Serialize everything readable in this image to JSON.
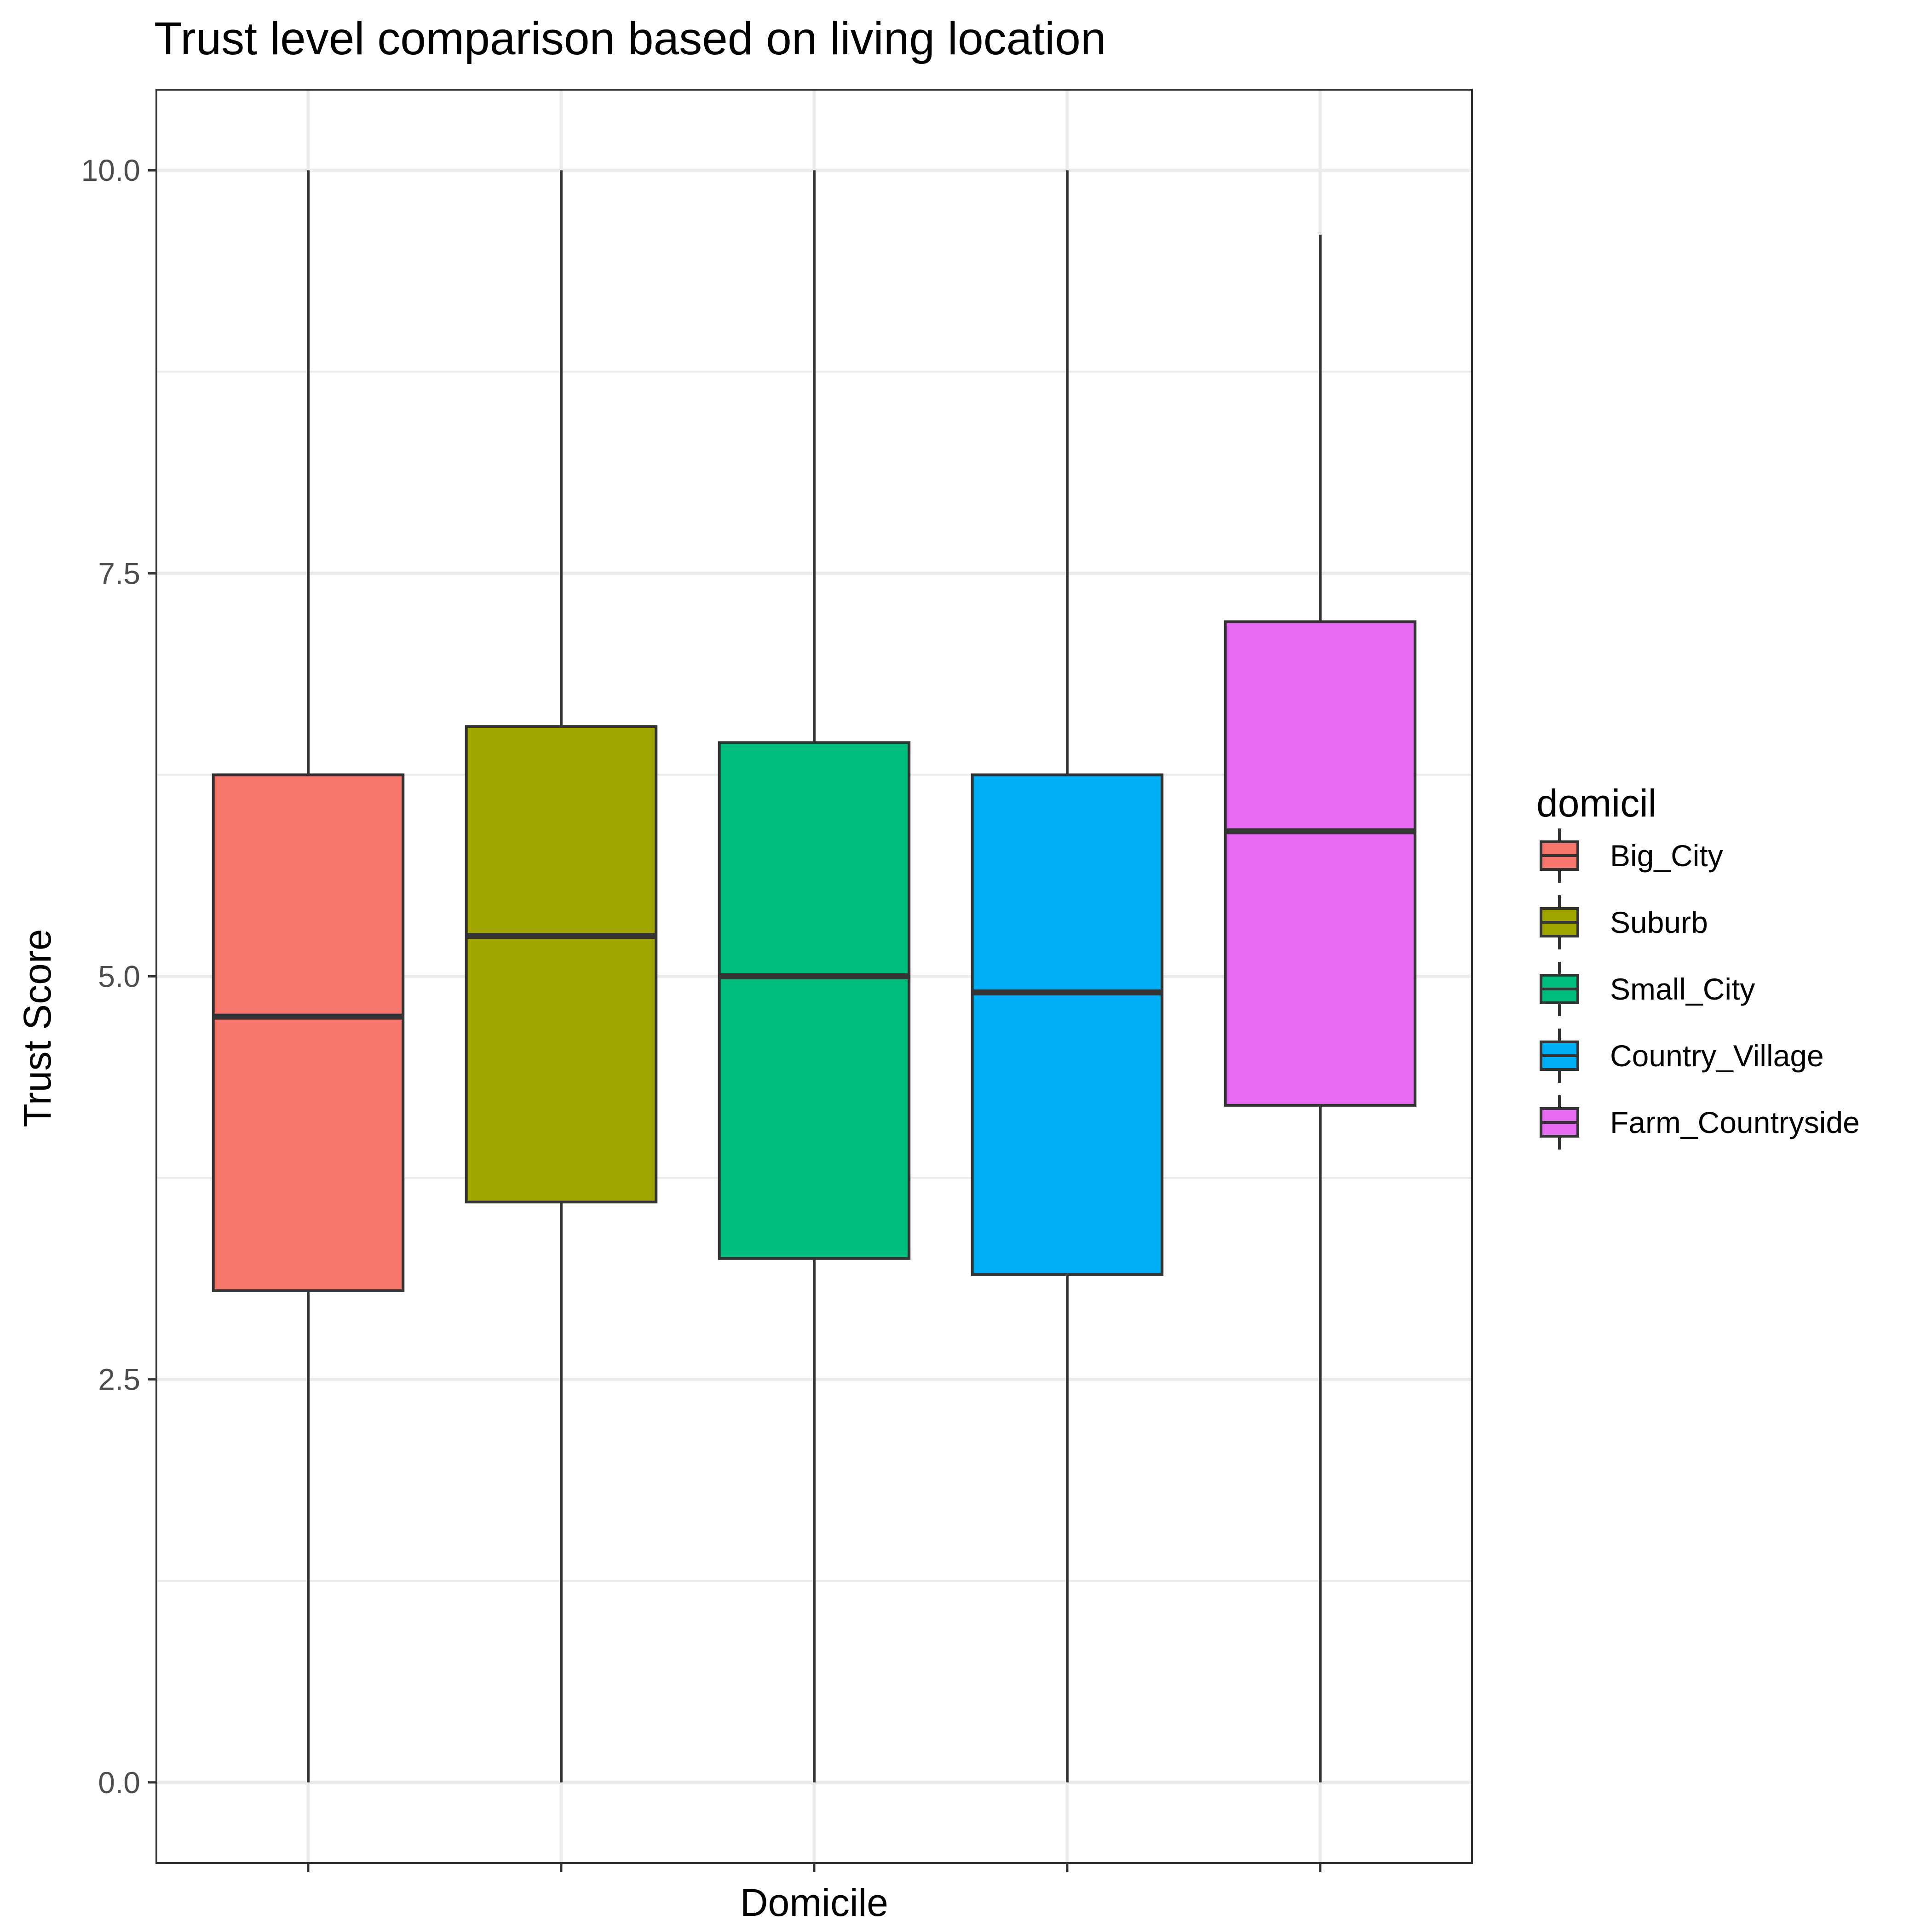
{
  "chart_data": {
    "type": "boxplot",
    "title": "Trust level comparison based on living location",
    "xlabel": "Domicile",
    "ylabel": "Trust Score",
    "ylim": [
      -0.5,
      10.5
    ],
    "y_ticks": [
      0,
      2.5,
      5,
      7.5,
      10
    ],
    "y_tick_labels": [
      "0.0",
      "2.5",
      "5.0",
      "7.5",
      "10.0"
    ],
    "x_tick_labels": [
      "",
      "",
      "",
      "",
      ""
    ],
    "grid": true,
    "legend": {
      "title": "domicil",
      "position": "right"
    },
    "series": [
      {
        "name": "Big_City",
        "color": "#F8766D",
        "whisker_low": 0,
        "q1": 3.05,
        "median": 4.75,
        "q3": 6.25,
        "whisker_high": 10
      },
      {
        "name": "Suburb",
        "color": "#A3A500",
        "whisker_low": 0,
        "q1": 3.6,
        "median": 5.25,
        "q3": 6.55,
        "whisker_high": 10
      },
      {
        "name": "Small_City",
        "color": "#00BF7D",
        "whisker_low": 0,
        "q1": 3.25,
        "median": 5.0,
        "q3": 6.45,
        "whisker_high": 10
      },
      {
        "name": "Country_Village",
        "color": "#00B0F6",
        "whisker_low": 0,
        "q1": 3.15,
        "median": 4.9,
        "q3": 6.25,
        "whisker_high": 10
      },
      {
        "name": "Farm_Countryside",
        "color": "#E76BF3",
        "whisker_low": 0,
        "q1": 4.2,
        "median": 5.9,
        "q3": 7.2,
        "whisker_high": 9.6
      }
    ]
  }
}
